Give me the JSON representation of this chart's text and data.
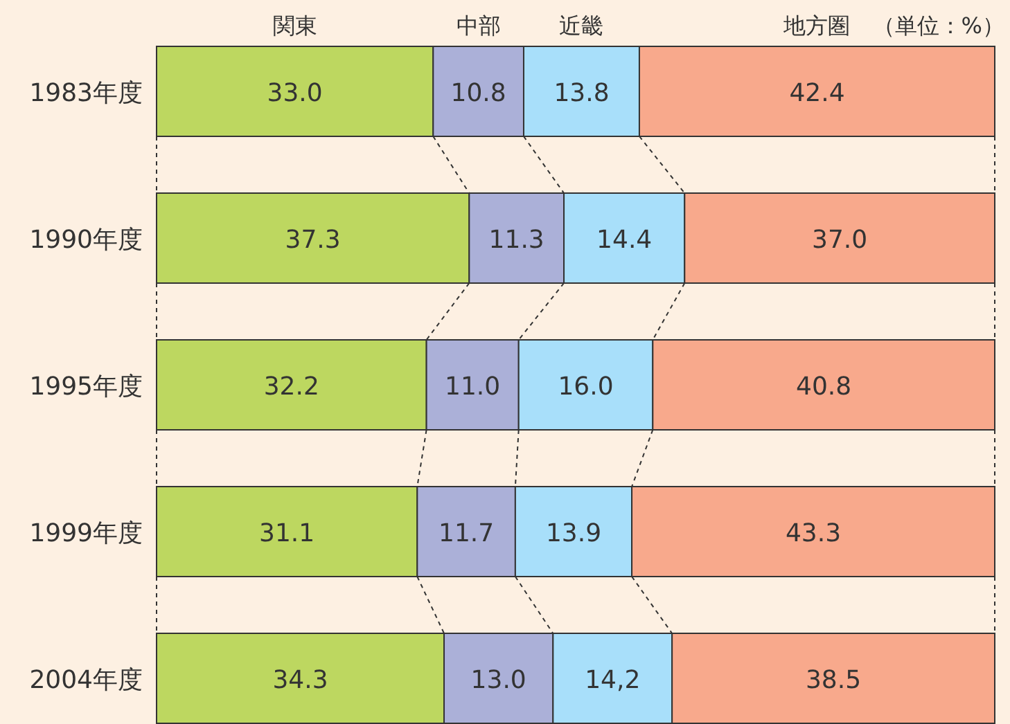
{
  "chart_data": {
    "type": "bar",
    "orientation": "horizontal",
    "stacked": true,
    "categories": [
      "1983年度",
      "1990年度",
      "1995年度",
      "1999年度",
      "2004年度"
    ],
    "series": [
      {
        "name": "関東",
        "color": "#bdd760",
        "values": [
          33.0,
          37.3,
          32.2,
          31.1,
          34.3
        ],
        "value_labels": [
          "33.0",
          "37.3",
          "32.2",
          "31.1",
          "34.3"
        ]
      },
      {
        "name": "中部",
        "color": "#abb0d8",
        "values": [
          10.8,
          11.3,
          11.0,
          11.7,
          13.0
        ],
        "value_labels": [
          "10.8",
          "11.3",
          "11.0",
          "11.7",
          "13.0"
        ]
      },
      {
        "name": "近畿",
        "color": "#a8dffa",
        "values": [
          13.8,
          14.4,
          16.0,
          13.9,
          14.2
        ],
        "value_labels": [
          "13.8",
          "14.4",
          "16.0",
          "13.9",
          "14,2"
        ]
      },
      {
        "name": "地方圏",
        "color": "#f8a98c",
        "values": [
          42.4,
          37.0,
          40.8,
          43.3,
          38.5
        ],
        "value_labels": [
          "42.4",
          "37.0",
          "40.8",
          "43.3",
          "38.5"
        ]
      }
    ],
    "annotations": [
      "（単位：%）"
    ]
  }
}
